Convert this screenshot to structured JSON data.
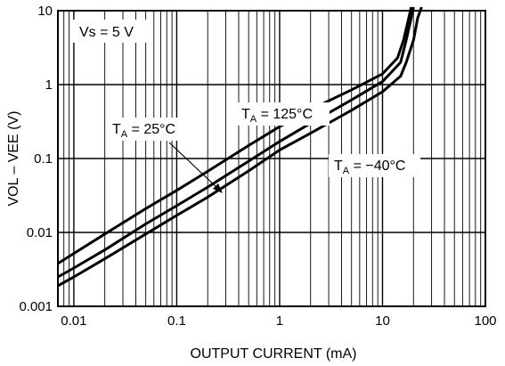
{
  "chart_data": {
    "type": "line",
    "title": "",
    "xlabel": "OUTPUT CURRENT (mA)",
    "ylabel": "VOL – VEE (V)",
    "xscale": "log",
    "yscale": "log",
    "xlim": [
      0.007,
      100
    ],
    "ylim": [
      0.001,
      10
    ],
    "xticks": [
      0.01,
      0.1,
      1,
      10,
      100
    ],
    "xtick_labels": [
      "0.01",
      "0.1",
      "1",
      "10",
      "100"
    ],
    "yticks": [
      0.001,
      0.01,
      0.1,
      1,
      10
    ],
    "ytick_labels": [
      "0.001",
      "0.01",
      "0.1",
      "1",
      "10"
    ],
    "grid": true,
    "annotations": {
      "supply": "Vs = 5 V",
      "t25_prefix": "T",
      "t25_sub": "A",
      "t25_suffix": " = 25°C",
      "t125_prefix": "T",
      "t125_sub": "A",
      "t125_suffix": " = 125°C",
      "tm40_prefix": "T",
      "tm40_sub": "A",
      "tm40_suffix": " = −40°C"
    },
    "series": [
      {
        "name": "TA = 125°C",
        "x": [
          0.007,
          0.01,
          0.02,
          0.05,
          0.1,
          0.2,
          0.5,
          1,
          2,
          5,
          10,
          14,
          16,
          18,
          19
        ],
        "y": [
          0.0038,
          0.0052,
          0.0095,
          0.021,
          0.037,
          0.067,
          0.15,
          0.27,
          0.46,
          0.85,
          1.4,
          2.3,
          4.0,
          8.0,
          12
        ]
      },
      {
        "name": "TA = 25°C",
        "x": [
          0.007,
          0.01,
          0.02,
          0.05,
          0.1,
          0.2,
          0.5,
          1,
          2,
          5,
          10,
          15,
          17,
          19,
          20
        ],
        "y": [
          0.0025,
          0.0033,
          0.0058,
          0.013,
          0.023,
          0.041,
          0.092,
          0.17,
          0.3,
          0.62,
          1.1,
          2.0,
          4.0,
          8.0,
          12
        ]
      },
      {
        "name": "TA = −40°C",
        "x": [
          0.007,
          0.01,
          0.02,
          0.05,
          0.1,
          0.2,
          0.5,
          1,
          2,
          5,
          10,
          15,
          17,
          20,
          22,
          24
        ],
        "y": [
          0.0019,
          0.0025,
          0.0044,
          0.0095,
          0.017,
          0.03,
          0.068,
          0.13,
          0.22,
          0.45,
          0.8,
          1.3,
          2.0,
          4.0,
          8.0,
          13
        ]
      }
    ]
  }
}
